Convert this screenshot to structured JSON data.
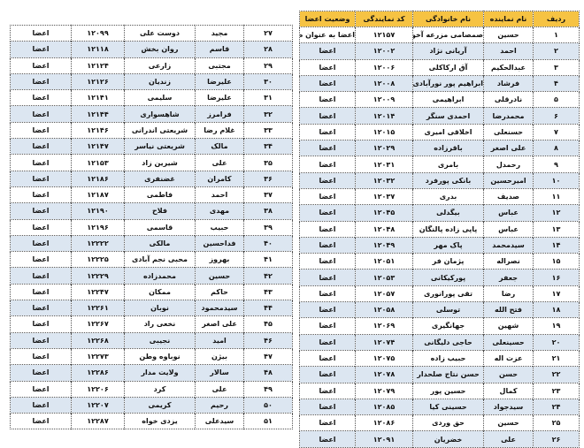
{
  "colors": {
    "header": "#f6c343",
    "alt_row": "#dce6f1"
  },
  "headers": [
    "ردیف",
    "نام نماینده",
    "نام خانوادگی",
    "کد نمایندگی",
    "وضعیت اعضا"
  ],
  "right_rows": [
    [
      "۱",
      "حسین",
      "صمصامی مزرعه آخوند",
      "۱۲۱۵۷",
      "اعضا به عنوان طراح"
    ],
    [
      "۲",
      "احمد",
      "آریانی نژاد",
      "۱۲۰۰۲",
      "اعضا"
    ],
    [
      "۳",
      "عبدالحکیم",
      "آق ارکاکلی",
      "۱۲۰۰۶",
      "اعضا"
    ],
    [
      "۴",
      "فرشاد",
      "ابراهیم پور نورآبادی",
      "۱۲۰۰۸",
      "اعضا"
    ],
    [
      "۵",
      "نادرقلی",
      "ابراهیمی",
      "۱۲۰۰۹",
      "اعضا"
    ],
    [
      "۶",
      "محمدرضا",
      "احمدی سنگر",
      "۱۲۰۱۴",
      "اعضا"
    ],
    [
      "۷",
      "حسنعلی",
      "اخلاقی امیری",
      "۱۲۰۱۵",
      "اعضا"
    ],
    [
      "۸",
      "علی اصغر",
      "باقرزاده",
      "۱۲۰۲۹",
      "اعضا"
    ],
    [
      "۹",
      "رحمدل",
      "بامری",
      "۱۲۰۳۱",
      "اعضا"
    ],
    [
      "۱۰",
      "امیرحسین",
      "بانکی پورفرد",
      "۱۲۰۳۲",
      "اعضا"
    ],
    [
      "۱۱",
      "صدیف",
      "بدری",
      "۱۲۰۳۷",
      "اعضا"
    ],
    [
      "۱۲",
      "عباس",
      "بیگدلی",
      "۱۲۰۴۵",
      "اعضا"
    ],
    [
      "۱۳",
      "عباس",
      "پاپی زاده پالنگان",
      "۱۲۰۴۸",
      "اعضا"
    ],
    [
      "۱۴",
      "سیدمحمد",
      "پاک مهر",
      "۱۲۰۴۹",
      "اعضا"
    ],
    [
      "۱۵",
      "نصراله",
      "پژمان فر",
      "۱۲۰۵۱",
      "اعضا"
    ],
    [
      "۱۶",
      "جعفر",
      "پورکیکانی",
      "۱۲۰۵۳",
      "اعضا"
    ],
    [
      "۱۷",
      "رضا",
      "تقی پورانوری",
      "۱۲۰۵۷",
      "اعضا"
    ],
    [
      "۱۸",
      "فتح الله",
      "توسلی",
      "۱۲۰۵۸",
      "اعضا"
    ],
    [
      "۱۹",
      "شهین",
      "جهانگیری",
      "۱۲۰۶۹",
      "اعضا"
    ],
    [
      "۲۰",
      "حسینعلی",
      "حاجی دلیگانی",
      "۱۲۰۷۴",
      "اعضا"
    ],
    [
      "۲۱",
      "عزت اله",
      "حبیب زاده",
      "۱۲۰۷۵",
      "اعضا"
    ],
    [
      "۲۲",
      "حسن",
      "حسن نتاج صلحدار",
      "۱۲۰۷۸",
      "اعضا"
    ],
    [
      "۲۳",
      "کمال",
      "حسین پور",
      "۱۲۰۷۹",
      "اعضا"
    ],
    [
      "۲۴",
      "سیدجواد",
      "حسینی کیا",
      "۱۲۰۸۵",
      "اعضا"
    ],
    [
      "۲۵",
      "حسین",
      "حق وردی",
      "۱۲۰۸۶",
      "اعضا"
    ],
    [
      "۲۶",
      "علی",
      "خضریان",
      "۱۲۰۹۱",
      "اعضا"
    ]
  ],
  "left_rows": [
    [
      "۲۷",
      "مجید",
      "دوست علی",
      "۱۲۰۹۹",
      "اعضا"
    ],
    [
      "۲۸",
      "قاسم",
      "روان بخش",
      "۱۲۱۱۸",
      "اعضا"
    ],
    [
      "۲۹",
      "مجتبی",
      "زارعی",
      "۱۲۱۲۴",
      "اعضا"
    ],
    [
      "۳۰",
      "علیرضا",
      "زندیان",
      "۱۲۱۲۶",
      "اعضا"
    ],
    [
      "۳۱",
      "علیرضا",
      "سلیمی",
      "۱۲۱۴۱",
      "اعضا"
    ],
    [
      "۳۲",
      "فرامرز",
      "شاهسواری",
      "۱۲۱۴۴",
      "اعضا"
    ],
    [
      "۳۳",
      "غلام رضا",
      "شریعتی اندرانی",
      "۱۲۱۴۶",
      "اعضا"
    ],
    [
      "۳۴",
      "مالک",
      "شریعتی نیاسر",
      "۱۲۱۴۷",
      "اعضا"
    ],
    [
      "۳۵",
      "علی",
      "شیرین زاد",
      "۱۲۱۵۳",
      "اعضا"
    ],
    [
      "۳۶",
      "کامران",
      "غضنفری",
      "۱۲۱۸۶",
      "اعضا"
    ],
    [
      "۳۷",
      "احمد",
      "فاطمی",
      "۱۲۱۸۷",
      "اعضا"
    ],
    [
      "۳۸",
      "مهدی",
      "فلاح",
      "۱۲۱۹۰",
      "اعضا"
    ],
    [
      "۳۹",
      "حبیب",
      "قاسمی",
      "۱۲۱۹۶",
      "اعضا"
    ],
    [
      "۴۰",
      "فداحسین",
      "مالکی",
      "۱۲۲۲۲",
      "اعضا"
    ],
    [
      "۴۱",
      "بهروز",
      "محبی نجم آبادی",
      "۱۲۲۲۵",
      "اعضا"
    ],
    [
      "۴۲",
      "حسین",
      "محمدزاده",
      "۱۲۲۲۹",
      "اعضا"
    ],
    [
      "۴۳",
      "حاکم",
      "ممکان",
      "۱۲۲۴۷",
      "اعضا"
    ],
    [
      "۴۴",
      "سیدمحمود",
      "نوبان",
      "۱۲۲۶۱",
      "اعضا"
    ],
    [
      "۴۵",
      "علی اصغر",
      "نخعی راد",
      "۱۲۲۶۷",
      "اعضا"
    ],
    [
      "۴۶",
      "امید",
      "نجیبی",
      "۱۲۲۶۸",
      "اعضا"
    ],
    [
      "۴۷",
      "بیژن",
      "نوباوه وطن",
      "۱۲۲۷۳",
      "اعضا"
    ],
    [
      "۴۸",
      "سالار",
      "ولایت مدار",
      "۱۲۲۸۶",
      "اعضا"
    ],
    [
      "۴۹",
      "علی",
      "کرد",
      "۱۲۲۰۶",
      "اعضا"
    ],
    [
      "۵۰",
      "رحیم",
      "کریمی",
      "۱۲۲۰۷",
      "اعضا"
    ],
    [
      "۵۱",
      "سیدعلی",
      "یزدی خواه",
      "۱۲۲۸۷",
      "اعضا"
    ]
  ]
}
